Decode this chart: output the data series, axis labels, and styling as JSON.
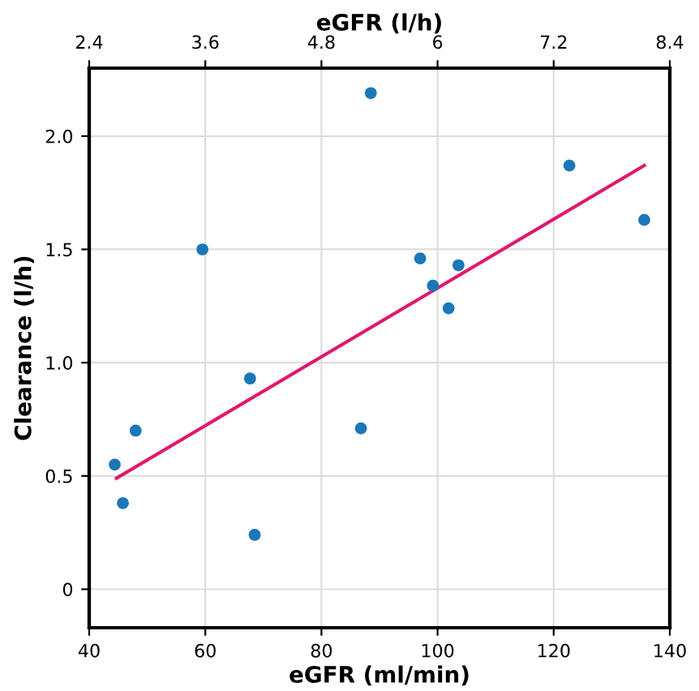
{
  "chart_data": {
    "type": "scatter",
    "xlabel": "eGFR (ml/min)",
    "ylabel": "Clearance (l/h)",
    "x2label": "eGFR (l/h)",
    "series": [
      {
        "marker": "circle",
        "color": "#1a78b8",
        "x": [
          44.4,
          45.8,
          48,
          59.5,
          67.7,
          68.5,
          86.8,
          88.5,
          97,
          99.2,
          101.9,
          103.6,
          122.7,
          135.6
        ],
        "values": [
          0.55,
          0.38,
          0.7,
          1.5,
          0.93,
          0.24,
          0.71,
          2.19,
          1.46,
          1.34,
          1.24,
          1.43,
          1.87,
          1.63
        ]
      },
      {
        "type": "line",
        "marker": "none",
        "color": "#e0196e",
        "x": [
          44.7,
          135.6
        ],
        "values": [
          0.49,
          1.87
        ]
      }
    ],
    "xlim": [
      40,
      140
    ],
    "xticks": [
      40,
      60,
      80,
      100,
      120,
      140
    ],
    "x2lim": [
      2.4,
      8.4
    ],
    "x2ticks": [
      2.4,
      3.6,
      4.8,
      6,
      7.2,
      8.4
    ],
    "ylim": [
      -0.17,
      2.3
    ],
    "yticks": [
      {
        "value": 0,
        "label": "0"
      },
      {
        "value": 0.5,
        "label": "0.5"
      },
      {
        "value": 1,
        "label": "1.0"
      },
      {
        "value": 1.5,
        "label": "1.5"
      },
      {
        "value": 2,
        "label": "2.0"
      }
    ],
    "grid": true,
    "line_style": "solid"
  }
}
